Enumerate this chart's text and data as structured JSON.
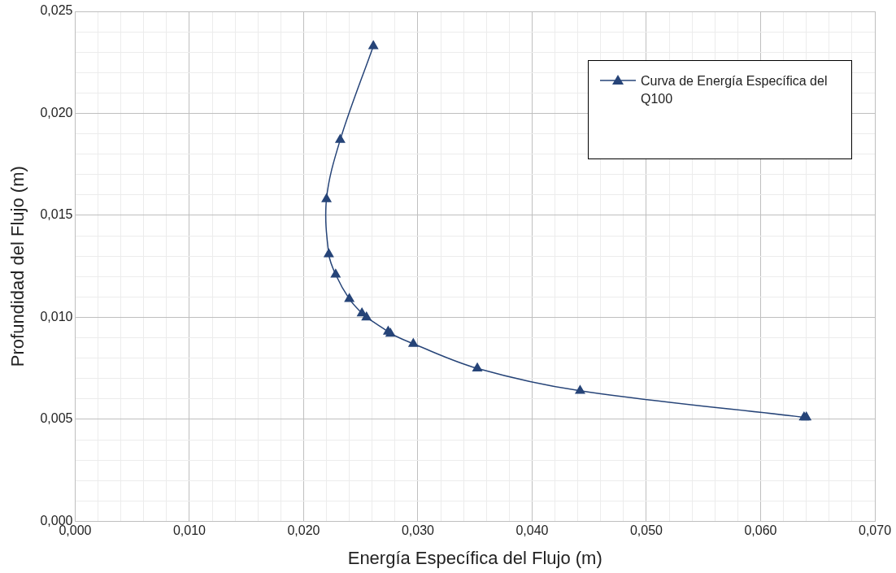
{
  "chart_data": {
    "type": "line",
    "xlabel": "Energía Específica del Flujo (m)",
    "ylabel": "Profundidad del Flujo (m)",
    "x": [
      0.0261,
      0.0232,
      0.022,
      0.0222,
      0.0228,
      0.024,
      0.0251,
      0.0255,
      0.0274,
      0.0276,
      0.0296,
      0.0352,
      0.0442,
      0.0638,
      0.064
    ],
    "series": [
      {
        "name": "Curva de Energía Específica del Q100",
        "color": "#264478",
        "values": [
          0.0233,
          0.0187,
          0.0158,
          0.0131,
          0.0121,
          0.0109,
          0.0102,
          0.01,
          0.0093,
          0.0092,
          0.0087,
          0.0075,
          0.0064,
          0.0051,
          0.0051
        ]
      }
    ],
    "xlim": [
      0,
      0.07
    ],
    "ylim": [
      0,
      0.025
    ],
    "xticks": [
      {
        "value": 0,
        "label": "0,000"
      },
      {
        "value": 0.002,
        "label": null
      },
      {
        "value": 0.004,
        "label": null
      },
      {
        "value": 0.006,
        "label": null
      },
      {
        "value": 0.008,
        "label": null
      },
      {
        "value": 0.01,
        "label": "0,010"
      },
      {
        "value": 0.012,
        "label": null
      },
      {
        "value": 0.014,
        "label": null
      },
      {
        "value": 0.016,
        "label": null
      },
      {
        "value": 0.018,
        "label": null
      },
      {
        "value": 0.02,
        "label": "0,020"
      },
      {
        "value": 0.022,
        "label": null
      },
      {
        "value": 0.024,
        "label": null
      },
      {
        "value": 0.026,
        "label": null
      },
      {
        "value": 0.028,
        "label": null
      },
      {
        "value": 0.03,
        "label": "0,030"
      },
      {
        "value": 0.032,
        "label": null
      },
      {
        "value": 0.034,
        "label": null
      },
      {
        "value": 0.036,
        "label": null
      },
      {
        "value": 0.038,
        "label": null
      },
      {
        "value": 0.04,
        "label": "0,040"
      },
      {
        "value": 0.042,
        "label": null
      },
      {
        "value": 0.044,
        "label": null
      },
      {
        "value": 0.046,
        "label": null
      },
      {
        "value": 0.048,
        "label": null
      },
      {
        "value": 0.05,
        "label": "0,050"
      },
      {
        "value": 0.052,
        "label": null
      },
      {
        "value": 0.054,
        "label": null
      },
      {
        "value": 0.056,
        "label": null
      },
      {
        "value": 0.058,
        "label": null
      },
      {
        "value": 0.06,
        "label": "0,060"
      },
      {
        "value": 0.062,
        "label": null
      },
      {
        "value": 0.064,
        "label": null
      },
      {
        "value": 0.066,
        "label": null
      },
      {
        "value": 0.068,
        "label": null
      },
      {
        "value": 0.07,
        "label": "0,070"
      }
    ],
    "yticks": [
      {
        "value": 0,
        "label": "0,000"
      },
      {
        "value": 0.001,
        "label": null
      },
      {
        "value": 0.002,
        "label": null
      },
      {
        "value": 0.003,
        "label": null
      },
      {
        "value": 0.004,
        "label": null
      },
      {
        "value": 0.005,
        "label": "0,005"
      },
      {
        "value": 0.006,
        "label": null
      },
      {
        "value": 0.007,
        "label": null
      },
      {
        "value": 0.008,
        "label": null
      },
      {
        "value": 0.009,
        "label": null
      },
      {
        "value": 0.01,
        "label": "0,010"
      },
      {
        "value": 0.011,
        "label": null
      },
      {
        "value": 0.012,
        "label": null
      },
      {
        "value": 0.013,
        "label": null
      },
      {
        "value": 0.014,
        "label": null
      },
      {
        "value": 0.015,
        "label": "0,015"
      },
      {
        "value": 0.016,
        "label": null
      },
      {
        "value": 0.017,
        "label": null
      },
      {
        "value": 0.018,
        "label": null
      },
      {
        "value": 0.019,
        "label": null
      },
      {
        "value": 0.02,
        "label": "0,020"
      },
      {
        "value": 0.021,
        "label": null
      },
      {
        "value": 0.022,
        "label": null
      },
      {
        "value": 0.023,
        "label": null
      },
      {
        "value": 0.024,
        "label": null
      },
      {
        "value": 0.025,
        "label": "0,025"
      }
    ],
    "grid": true,
    "legend": "top right",
    "marker": "triangle",
    "line_style": "solid"
  }
}
